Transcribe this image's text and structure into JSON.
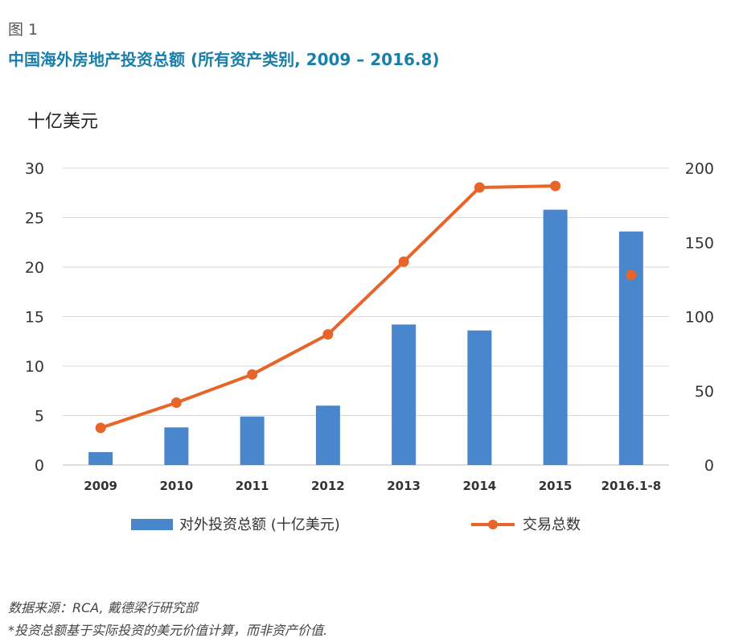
{
  "figure_label": "图 1",
  "title": "中国海外房地产投资总额 (所有资产类别, 2009 – 2016.8)",
  "source": "数据来源：RCA, 戴德梁行研究部",
  "footnote": "*投资总额基于实际投资的美元价值计算，而非资产价值.",
  "colors": {
    "bar": "#4a86cc",
    "line": "#e8652a",
    "grid": "#d9d9d9",
    "axis": "#bfbfbf"
  },
  "chart_data": {
    "type": "bar",
    "title": "中国海外房地产投资总额 (所有资产类别, 2009 – 2016.8)",
    "ylabel": "十亿美元",
    "categories": [
      "2009",
      "2010",
      "2011",
      "2012",
      "2013",
      "2014",
      "2015",
      "2016.1-8"
    ],
    "ylim": [
      0,
      30
    ],
    "yticks": [
      0,
      5,
      10,
      15,
      20,
      25,
      30
    ],
    "y2lim": [
      0,
      200
    ],
    "y2ticks": [
      0,
      50,
      100,
      150,
      200
    ],
    "legend_position": "bottom",
    "series": [
      {
        "name": "对外投资总额 (十亿美元)",
        "type": "bar",
        "axis": "left",
        "values": [
          1.3,
          3.8,
          4.9,
          6.0,
          14.2,
          13.6,
          25.8,
          23.6
        ]
      },
      {
        "name": "交易总数",
        "type": "line",
        "axis": "right",
        "values": [
          25,
          42,
          61,
          88,
          137,
          187,
          188,
          null
        ],
        "extra_points": [
          {
            "category": "2016.1-8",
            "value": 128
          }
        ]
      }
    ]
  }
}
